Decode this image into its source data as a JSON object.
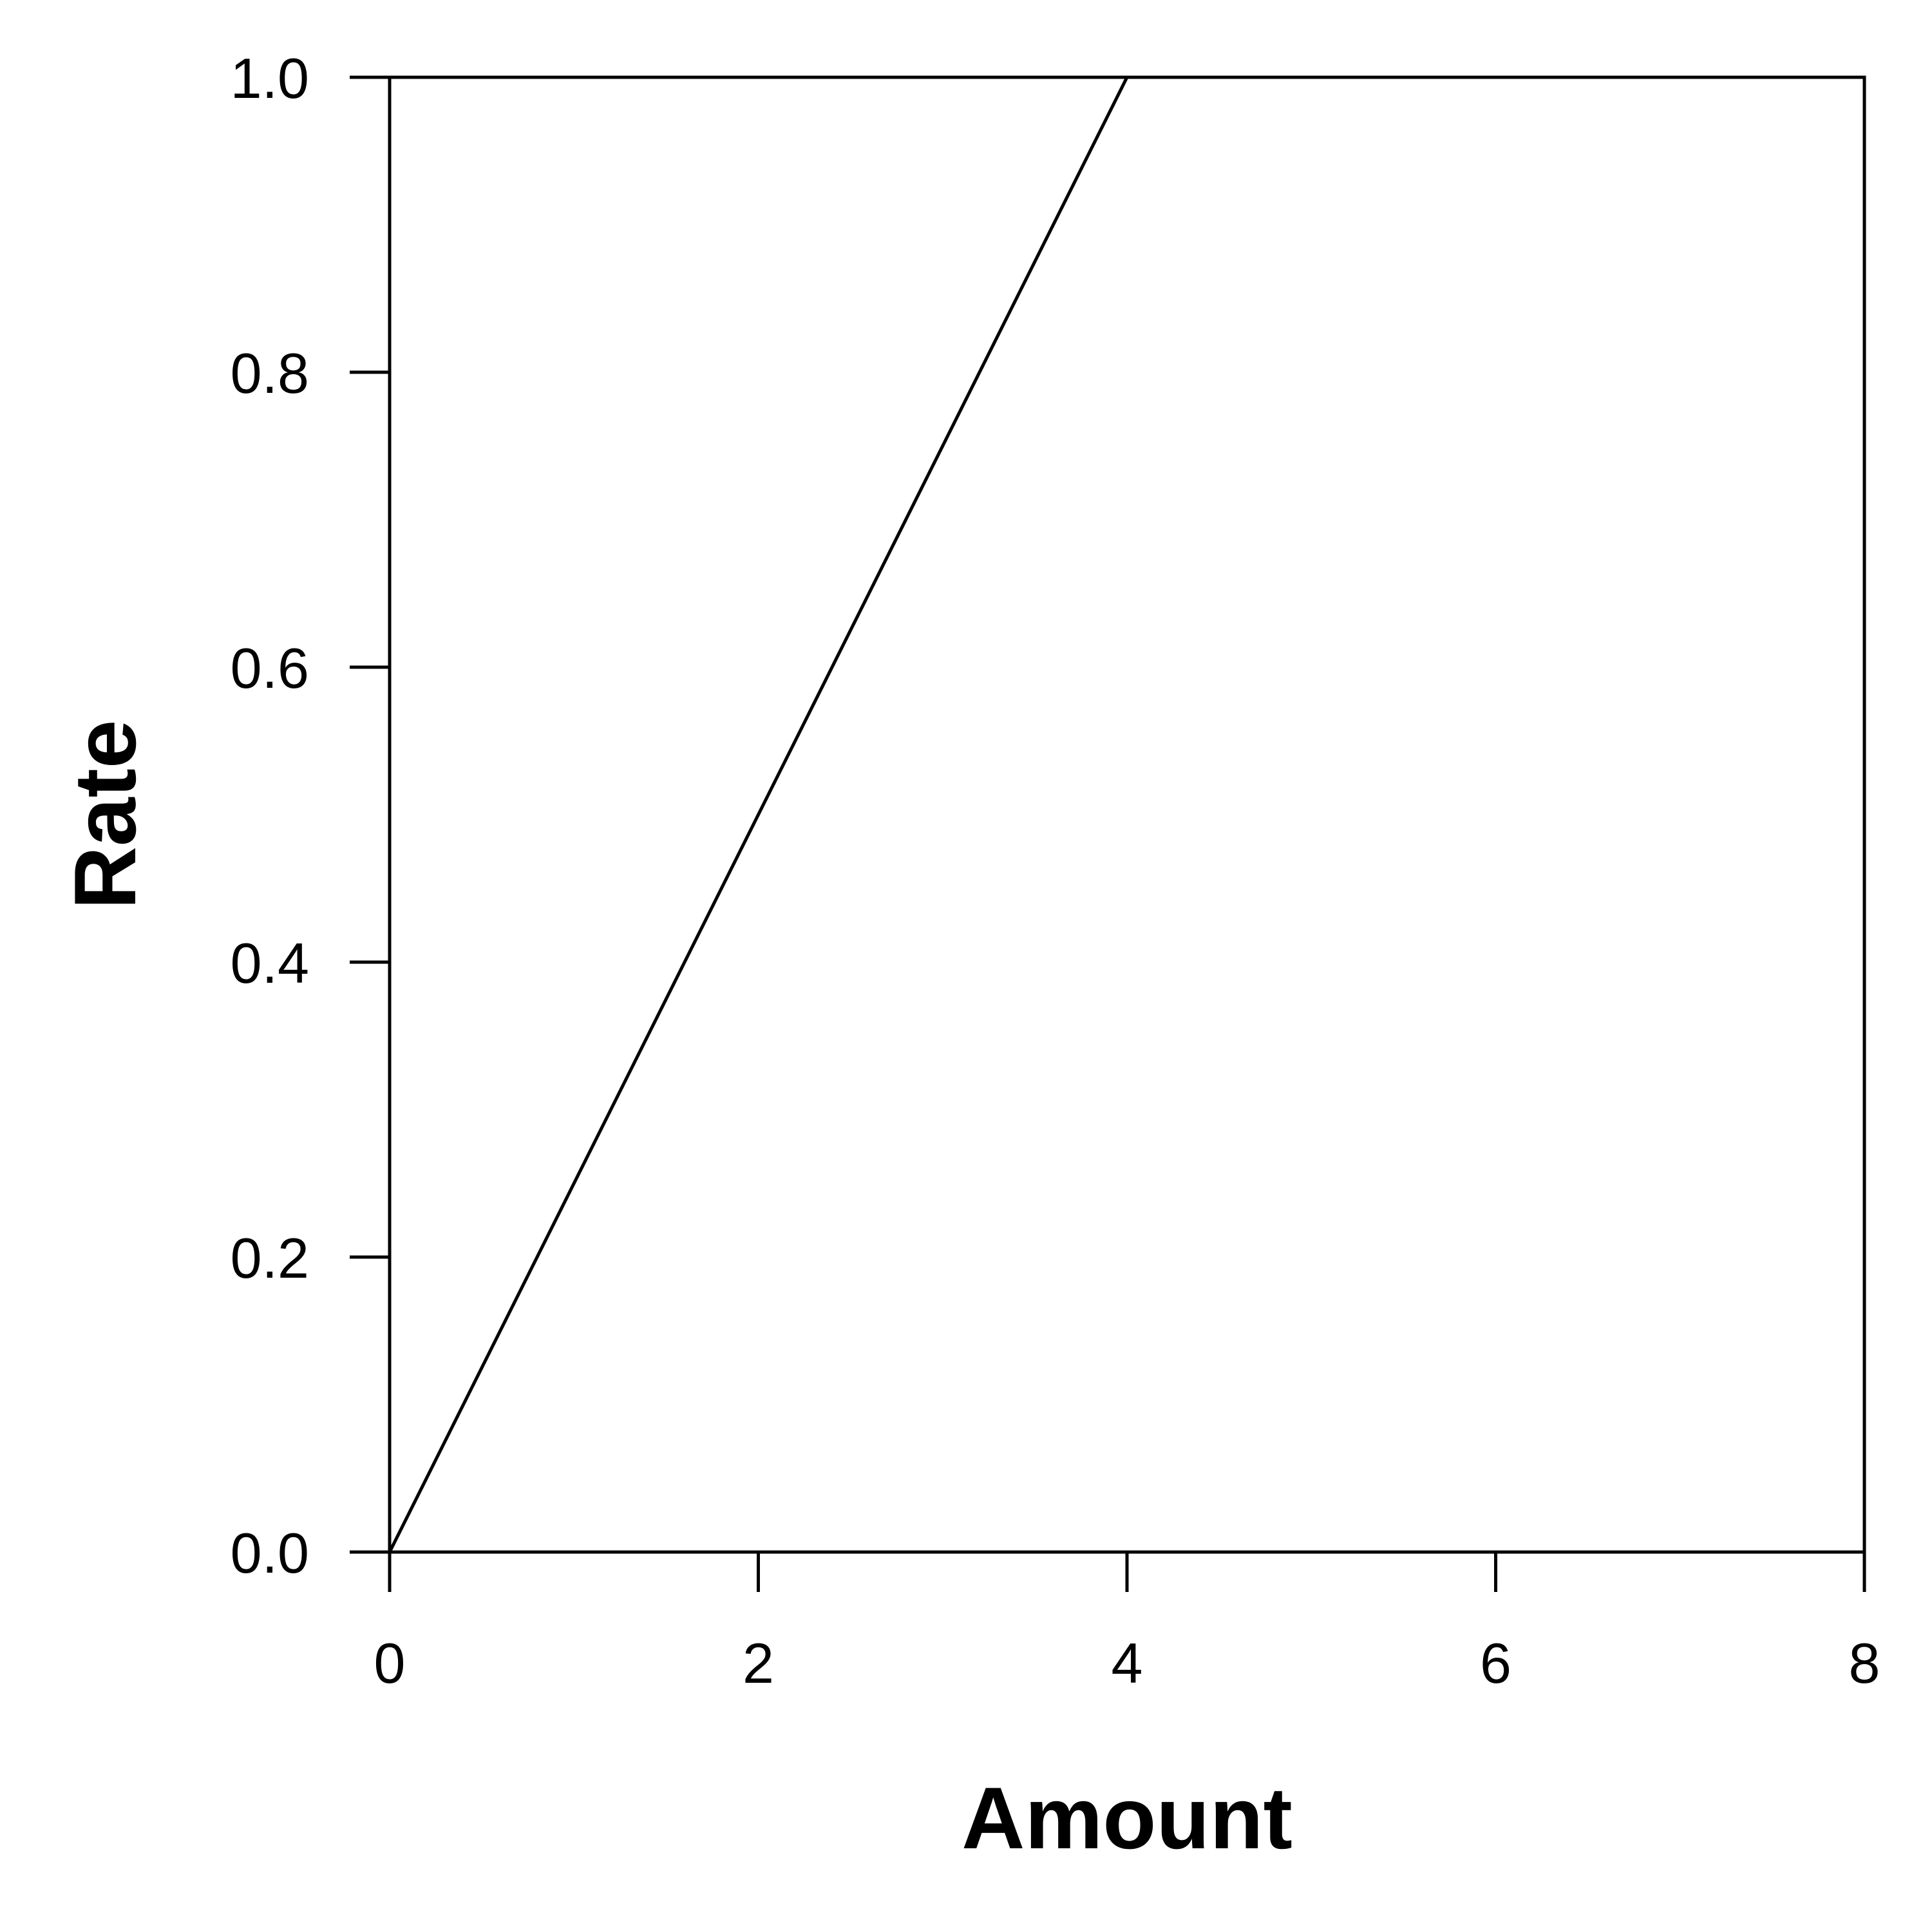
{
  "chart_data": {
    "type": "line",
    "title": "",
    "xlabel": "Amount",
    "ylabel": "Rate",
    "xlim": [
      0,
      8
    ],
    "ylim": [
      0,
      1
    ],
    "x_ticks": [
      "0",
      "2",
      "4",
      "6",
      "8"
    ],
    "y_ticks": [
      "0.0",
      "0.2",
      "0.4",
      "0.6",
      "0.8",
      "1.0"
    ],
    "grid": false,
    "series": [
      {
        "x": [
          0,
          4,
          8
        ],
        "y": [
          0,
          1,
          1
        ],
        "color": "#000000"
      }
    ]
  }
}
